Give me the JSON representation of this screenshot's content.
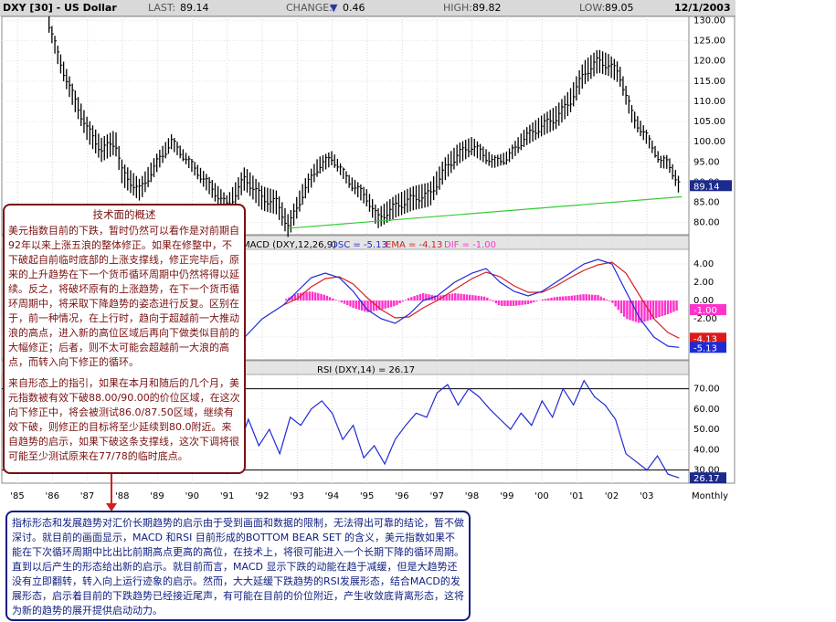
{
  "header": {
    "symbol": "DXY [30] - US Dollar",
    "last_label": "LAST:",
    "last_value": "89.14",
    "change_label": "CHANGE:",
    "change_value": "0.46",
    "high_label": "HIGH:",
    "high_value": "89.82",
    "low_label": "LOW:",
    "low_value": "89.05",
    "date": "12/1/2003"
  },
  "colors": {
    "price": "#000000",
    "support": "#33cc33",
    "macd": "#1f2ad6",
    "ema": "#d62020",
    "hist": "#ff33cc",
    "rsi": "#1f2ad6",
    "note_red": "#7a1010",
    "note_blue": "#0f1e80"
  },
  "chart_data": [
    {
      "type": "bar",
      "subtype": "ohlc",
      "title": "DXY [30] - US Dollar",
      "x_ticks": [
        "'85",
        "'86",
        "'87",
        "'88",
        "'89",
        "'90",
        "'91",
        "'92",
        "'93",
        "'94",
        "'95",
        "'96",
        "'97",
        "'98",
        "'99",
        "'00",
        "'01",
        "'02",
        "'03"
      ],
      "x_extra_label": "Monthly",
      "y_ticks": [
        "130.00",
        "125.00",
        "120.00",
        "115.00",
        "110.00",
        "105.00",
        "100.00",
        "95.00",
        "90.00",
        "85.00",
        "80.00"
      ],
      "ylim": [
        77,
        131
      ],
      "last_price_label": "89.14",
      "series": [
        {
          "name": "DXY",
          "x": [
            1985.9,
            1986.2,
            1986.6,
            1987.0,
            1987.4,
            1987.8,
            1988.0,
            1988.5,
            1989.0,
            1989.4,
            1989.8,
            1990.2,
            1990.6,
            1991.0,
            1991.5,
            1992.0,
            1992.4,
            1992.75,
            1993.2,
            1993.6,
            1994.0,
            1994.5,
            1995.0,
            1995.3,
            1995.8,
            1996.3,
            1996.8,
            1997.2,
            1997.6,
            1998.0,
            1998.6,
            1999.0,
            1999.5,
            2000.0,
            2000.4,
            2000.8,
            2001.2,
            2001.6,
            2001.9,
            2002.2,
            2002.6,
            2003.0,
            2003.4,
            2003.6,
            2003.92
          ],
          "values": [
            129,
            120,
            111,
            103,
            98,
            100,
            92,
            88,
            95,
            100,
            96,
            92,
            88,
            84,
            91,
            86,
            85,
            79,
            88,
            94,
            96,
            90,
            86,
            81,
            84,
            86,
            87,
            93,
            97,
            99,
            95,
            96,
            101,
            104,
            106,
            110,
            117,
            120,
            119,
            117,
            106,
            101,
            95,
            95,
            89.14
          ]
        }
      ],
      "support_line": {
        "x": [
          1992.75,
          2004.0
        ],
        "y": [
          78.6,
          86.4
        ]
      }
    },
    {
      "type": "line",
      "title": "MACD (DXY,12,26,9)",
      "legend": [
        {
          "label": "OSC = -5.13",
          "color": "#1f2ad6"
        },
        {
          "label": "EMA = -4.13",
          "color": "#d62020"
        },
        {
          "label": "DIF = -1.00",
          "color": "#ff33cc"
        }
      ],
      "y_ticks": [
        "4.00",
        "2.00",
        "0.00",
        "-2.00",
        "-4.00"
      ],
      "ylim": [
        -6.5,
        5.5
      ],
      "value_labels": [
        "-1.00",
        "-4.13",
        "-5.13"
      ],
      "series": [
        {
          "name": "OSC",
          "x": [
            1991.5,
            1992.0,
            1992.6,
            1993.0,
            1993.4,
            1993.8,
            1994.2,
            1994.6,
            1995.0,
            1995.4,
            1995.8,
            1996.2,
            1996.6,
            1997.0,
            1997.5,
            1998.0,
            1998.4,
            1998.8,
            1999.2,
            1999.6,
            2000.0,
            2000.4,
            2000.8,
            2001.2,
            2001.6,
            2002.0,
            2002.4,
            2002.8,
            2003.2,
            2003.6,
            2003.92
          ],
          "values": [
            -4,
            -2,
            -0.5,
            1,
            2.5,
            3,
            2.5,
            1,
            -1,
            -2,
            -2.5,
            -1.5,
            0,
            0.5,
            2,
            3,
            3.5,
            2,
            1,
            0.5,
            1,
            2,
            3,
            4,
            4.5,
            4,
            1,
            -2,
            -4,
            -5,
            -5.13
          ]
        },
        {
          "name": "EMA",
          "x": [
            1992.6,
            1993.0,
            1993.4,
            1993.8,
            1994.2,
            1994.6,
            1995.0,
            1995.4,
            1995.8,
            1996.2,
            1996.6,
            1997.0,
            1997.5,
            1998.0,
            1998.4,
            1998.8,
            1999.2,
            1999.6,
            2000.0,
            2000.4,
            2000.8,
            2001.2,
            2001.6,
            2002.0,
            2002.4,
            2002.8,
            2003.2,
            2003.6,
            2003.92
          ],
          "values": [
            -0.5,
            0.2,
            1.5,
            2.4,
            2.6,
            1.8,
            0.3,
            -1,
            -1.9,
            -1.8,
            -0.8,
            0,
            1.2,
            2.4,
            3.1,
            2.6,
            1.6,
            0.9,
            0.9,
            1.6,
            2.5,
            3.3,
            3.9,
            4.2,
            3,
            0.5,
            -2,
            -3.5,
            -4.13
          ]
        },
        {
          "name": "DIF",
          "x": [
            1992.6,
            1993.0,
            1993.4,
            1993.8,
            1994.2,
            1994.6,
            1995.0,
            1995.4,
            1995.8,
            1996.2,
            1996.6,
            1997.0,
            1997.5,
            1998.0,
            1998.4,
            1998.8,
            1999.2,
            1999.6,
            2000.0,
            2000.4,
            2000.8,
            2001.2,
            2001.6,
            2002.0,
            2002.4,
            2002.8,
            2003.2,
            2003.6,
            2003.92
          ],
          "values": [
            0,
            0.8,
            1,
            0.6,
            -0.1,
            -0.8,
            -1.3,
            -1,
            -0.6,
            0.3,
            0.8,
            0.5,
            0.8,
            0.6,
            0.4,
            -0.6,
            -0.6,
            -0.4,
            0.1,
            0.4,
            0.5,
            0.7,
            0.6,
            -0.2,
            -2,
            -2.5,
            -2,
            -1.5,
            -1.0
          ]
        }
      ]
    },
    {
      "type": "line",
      "title": "RSI (DXY,14) = 26.17",
      "y_ticks": [
        "70.00",
        "60.00",
        "50.00",
        "40.00",
        "30.00"
      ],
      "ylim": [
        24,
        77
      ],
      "reference_lines": [
        70,
        30
      ],
      "value_label": "26.17",
      "series": [
        {
          "name": "RSI",
          "x": [
            1990.7,
            1991.0,
            1991.3,
            1991.6,
            1991.9,
            1992.2,
            1992.5,
            1992.8,
            1993.1,
            1993.4,
            1993.7,
            1994.0,
            1994.3,
            1994.6,
            1994.9,
            1995.2,
            1995.5,
            1995.8,
            1996.1,
            1996.4,
            1996.7,
            1997.0,
            1997.3,
            1997.6,
            1997.9,
            1998.2,
            1998.5,
            1998.8,
            1999.1,
            1999.4,
            1999.7,
            2000.0,
            2000.3,
            2000.6,
            2000.9,
            2001.2,
            2001.5,
            2001.8,
            2002.1,
            2002.4,
            2002.7,
            2003.0,
            2003.3,
            2003.6,
            2003.92
          ],
          "values": [
            48,
            53,
            40,
            55,
            42,
            50,
            38,
            56,
            52,
            60,
            64,
            58,
            45,
            52,
            36,
            42,
            33,
            45,
            52,
            58,
            56,
            68,
            72,
            62,
            70,
            66,
            60,
            55,
            50,
            58,
            52,
            64,
            56,
            70,
            62,
            74,
            66,
            62,
            55,
            38,
            34,
            30,
            37,
            28,
            26.17
          ]
        }
      ]
    }
  ],
  "notes": {
    "note1_title": "技术面的概述",
    "note1_p1": "美元指数目前的下跌，暂时仍然可以看作是对前期自92年以来上涨五浪的整体修正。如果在修整中，不下破起自前临时底部的上涨支撑线，修正完毕后，原来的上升趋势在下一个货币循环周期中仍然将得以延续。反之，将破坏原有的上涨趋势，在下一个货币循环周期中，将采取下降趋势的姿态进行反复。区别在于，前一种情况，在上行时，趋向于超越前一大推动浪的高点，进入新的高位区域后再向下做类似目前的大幅修正；后者，则不太可能会超越前一大浪的高点，而转入向下修正的循环。",
    "note1_p2": "来自形态上的指引，如果在本月和随后的几个月，美元指数被有效下破88.00/90.00的价位区域，在这次向下修正中，将会被测试86.0/87.50区域，继续有效下破，则修正的目标将至少延续到80.0附近。来自趋势的启示，如果下破这条支撑线，这次下调将很可能至少测试原来在77/78的临时底点。",
    "note2_text": "指标形态和发展趋势对汇价长期趋势的启示由于受到画面和数据的限制，无法得出可靠的结论，暂不做深讨。就目前的画面显示，MACD 和RSI 目前形成的BOTTOM BEAR SET 的含义，美元指数如果不能在下次循环周期中比出比前期高点更高的高位，在技术上，将很可能进入一个长期下降的循环周期。直到以后产生的形态给出新的启示。就目前而言，MACD 显示下跌的动能在趋于减缓，但是大趋势还没有立即翻转，转入向上运行迹象的启示。然而，大大延缓下跌趋势的RSI发展形态，结合MACD的发展形态，启示着目前的下跌趋势已经接近尾声，有可能在目前的价位附近，产生收敛底背离形态，这将为新的趋势的展开提供启动动力。"
  }
}
